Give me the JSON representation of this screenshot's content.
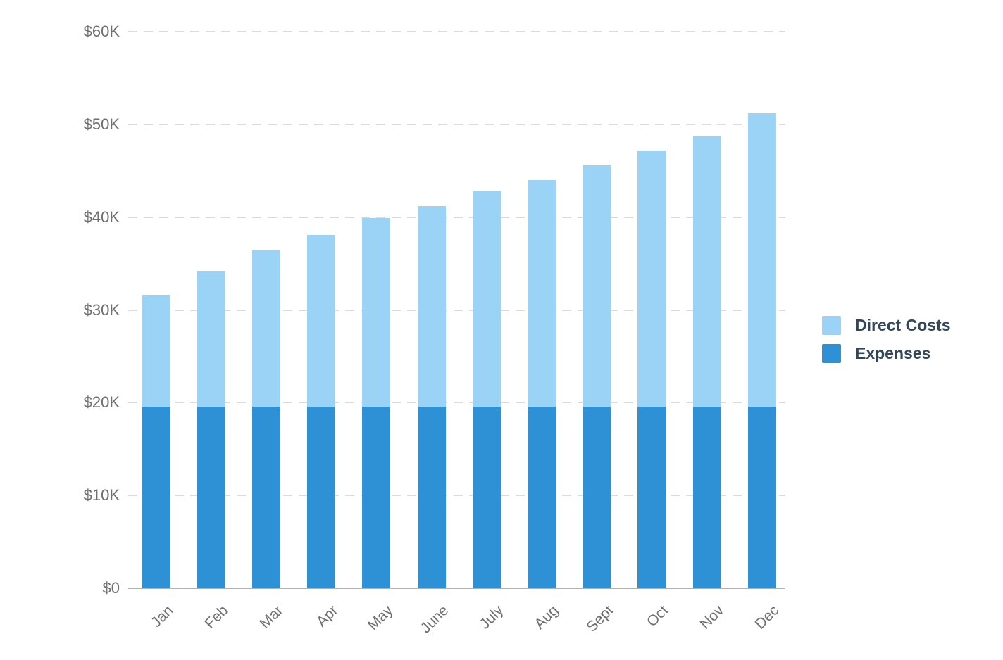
{
  "chart_data": {
    "type": "bar",
    "stacked": true,
    "title": "",
    "xlabel": "",
    "ylabel": "",
    "grid": "dashed horizontal",
    "legend_position": "right-middle",
    "categories": [
      "Jan",
      "Feb",
      "Mar",
      "Apr",
      "May",
      "June",
      "July",
      "Aug",
      "Sept",
      "Oct",
      "Nov",
      "Dec"
    ],
    "series": [
      {
        "name": "Direct Costs",
        "color": "#9bd3f6",
        "values": [
          12.0,
          14.6,
          16.9,
          18.5,
          20.3,
          21.6,
          23.2,
          24.4,
          26.0,
          27.6,
          29.2,
          31.6
        ]
      },
      {
        "name": "Expenses",
        "color": "#2e91d5",
        "values": [
          19.6,
          19.6,
          19.6,
          19.6,
          19.6,
          19.6,
          19.6,
          19.6,
          19.6,
          19.6,
          19.6,
          19.6
        ]
      }
    ],
    "stacked_totals": [
      31.6,
      34.2,
      36.5,
      38.1,
      39.9,
      41.2,
      42.8,
      44.0,
      45.6,
      47.2,
      48.8,
      51.2
    ],
    "value_unit": "thousand USD",
    "ylim": [
      0,
      60
    ],
    "y_ticks": [
      {
        "label": "$0",
        "value": 0
      },
      {
        "label": "$10K",
        "value": 10
      },
      {
        "label": "$20K",
        "value": 20
      },
      {
        "label": "$30K",
        "value": 30
      },
      {
        "label": "$40K",
        "value": 40
      },
      {
        "label": "$50K",
        "value": 50
      },
      {
        "label": "$60K",
        "value": 60
      }
    ]
  },
  "legend": {
    "items": [
      {
        "label": "Direct Costs",
        "color": "#9bd3f6"
      },
      {
        "label": "Expenses",
        "color": "#2e91d5"
      }
    ]
  },
  "colors": {
    "background": "#ffffff",
    "gridline": "#dbdbdb",
    "axis_baseline": "#b1b1b1",
    "axis_text": "#6f6f6f",
    "legend_text": "#33475c"
  }
}
